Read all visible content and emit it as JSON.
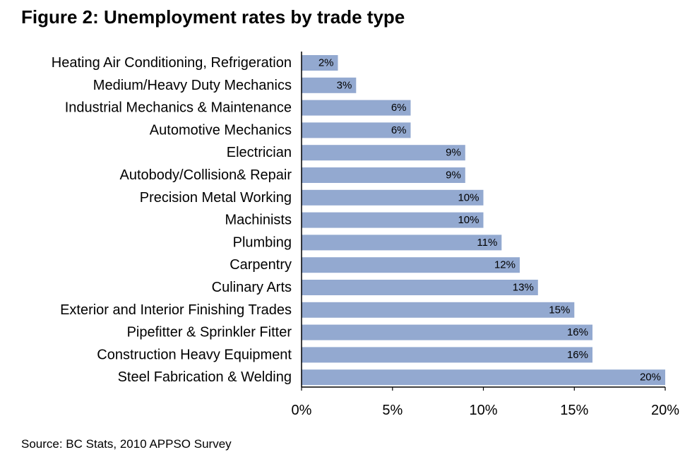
{
  "figure": {
    "title": "Figure 2: Unemployment rates by trade type",
    "source": "Source: BC Stats, 2010 APPSO Survey"
  },
  "colors": {
    "bar": "#93a9d0",
    "axis": "#000000",
    "text": "#000000"
  },
  "chart_data": {
    "type": "bar",
    "orientation": "horizontal",
    "title": "Figure 2: Unemployment rates by trade type",
    "xlabel": "",
    "ylabel": "",
    "xlim": [
      0,
      20
    ],
    "grid": false,
    "legend": "none",
    "categories": [
      "Heating Air Conditioning, Refrigeration",
      "Medium/Heavy Duty Mechanics",
      "Industrial Mechanics & Maintenance",
      "Automotive Mechanics",
      "Electrician",
      "Autobody/Collision& Repair",
      "Precision Metal Working",
      "Machinists",
      "Plumbing",
      "Carpentry",
      "Culinary Arts",
      "Exterior and Interior Finishing Trades",
      "Pipefitter & Sprinkler Fitter",
      "Construction Heavy Equipment",
      "Steel Fabrication & Welding"
    ],
    "values": [
      2,
      3,
      6,
      6,
      9,
      9,
      10,
      10,
      11,
      12,
      13,
      15,
      16,
      16,
      20
    ],
    "value_labels": [
      "2%",
      "3%",
      "6%",
      "6%",
      "9%",
      "9%",
      "10%",
      "10%",
      "11%",
      "12%",
      "13%",
      "15%",
      "16%",
      "16%",
      "20%"
    ],
    "x_ticks": [
      0,
      5,
      10,
      15,
      20
    ],
    "x_tick_labels": [
      "0%",
      "5%",
      "10%",
      "15%",
      "20%"
    ]
  }
}
